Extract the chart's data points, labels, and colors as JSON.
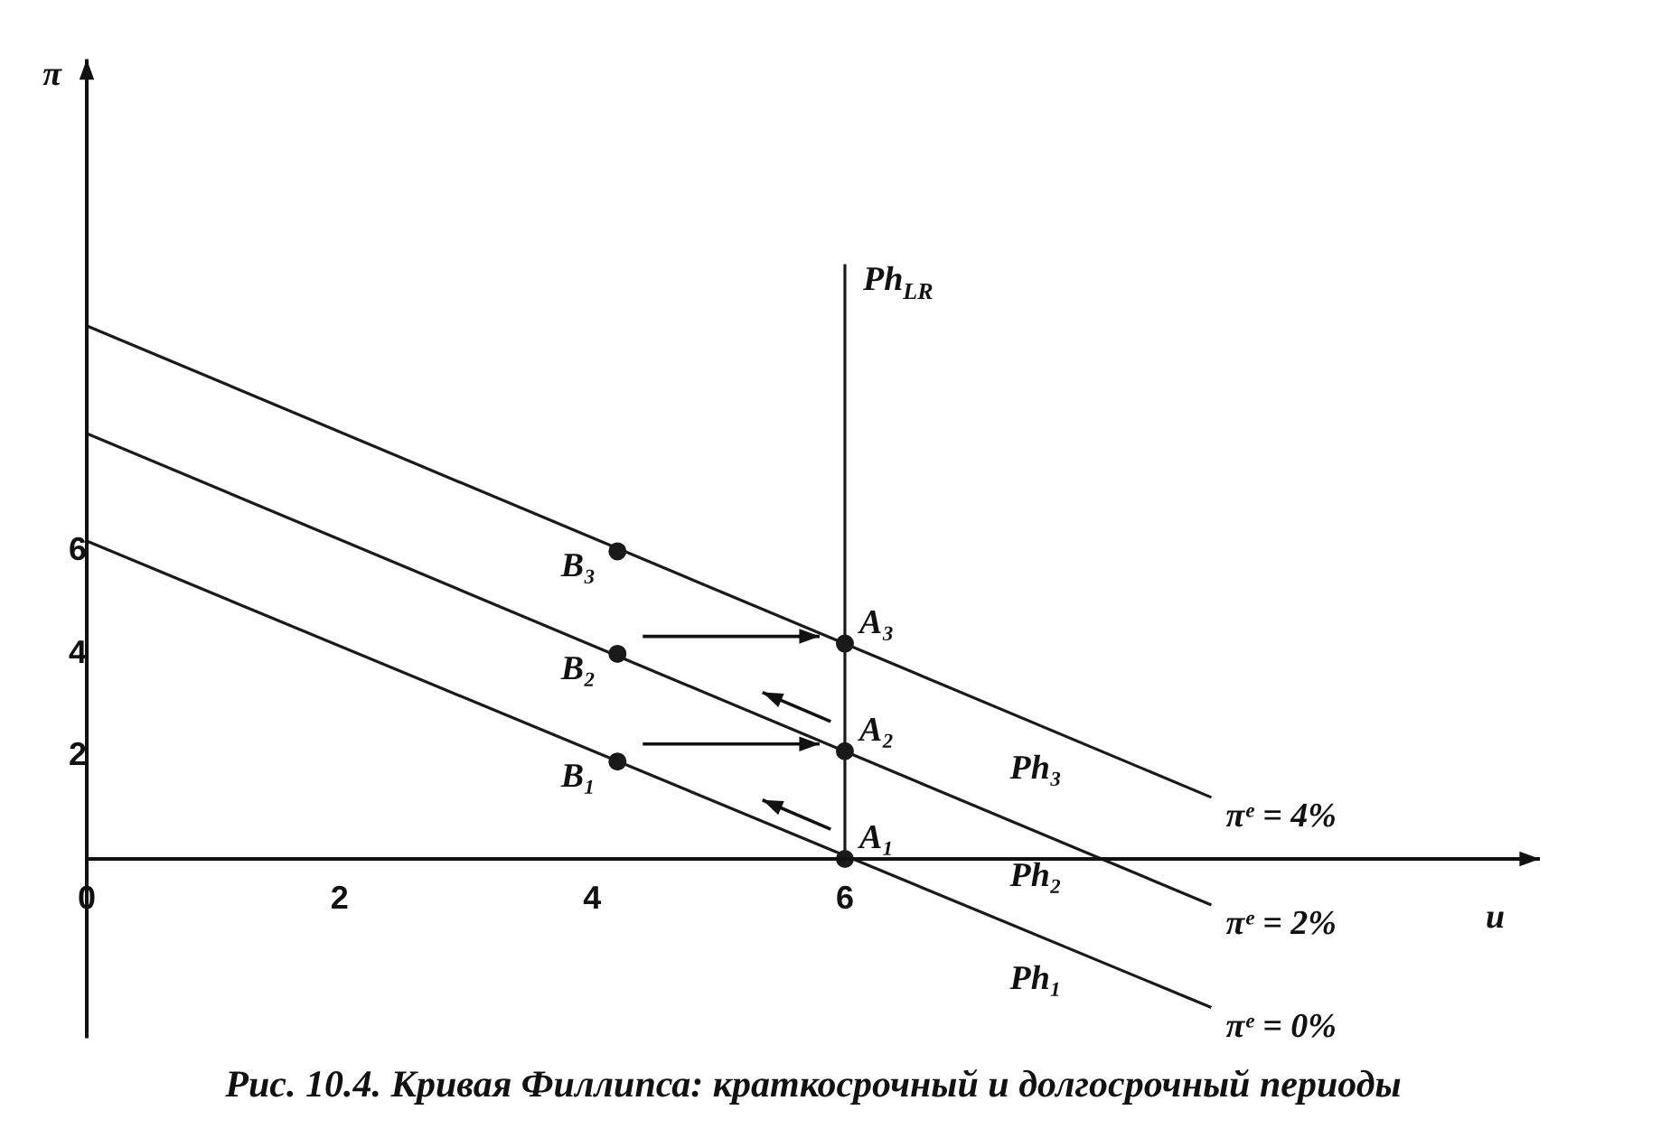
{
  "chart_data": {
    "type": "line",
    "title": "Рис. 10.4. Кривая Филлипса: краткосрочный и долгосрочный периоды",
    "xlabel": "u",
    "ylabel": "π",
    "xlim": [
      0,
      11.5
    ],
    "ylim": [
      -3.5,
      15.6
    ],
    "xticks": [
      0,
      2,
      4,
      6
    ],
    "yticks": [
      2,
      4,
      6
    ],
    "grid": false,
    "legend": false,
    "marker": "none",
    "line_style": "solid",
    "series": [
      {
        "name": "Ph₁",
        "color": "#1a1a1a",
        "x": [
          0,
          8.9
        ],
        "values": [
          6.2,
          -2.9
        ]
      },
      {
        "name": "Ph₂",
        "color": "#1a1a1a",
        "x": [
          0,
          8.9
        ],
        "values": [
          8.3,
          -0.9
        ]
      },
      {
        "name": "Ph₃",
        "color": "#1a1a1a",
        "x": [
          0,
          8.9
        ],
        "values": [
          10.4,
          1.2
        ]
      },
      {
        "name": "Ph$_{LR}$",
        "color": "#1a1a1a",
        "x": [
          6,
          6
        ],
        "values": [
          0,
          11.6
        ]
      },
      {
        "type": "scatter",
        "color": "#1a1a1a",
        "marker": "circle",
        "x": [
          4.2,
          4.2,
          4.2,
          6,
          6,
          6
        ],
        "values": [
          1.9,
          4.0,
          6.0,
          0,
          2.1,
          4.2
        ]
      }
    ],
    "annotations": [
      {
        "text": "B₁",
        "x": 4.2,
        "y": 1.9
      },
      {
        "text": "B₂",
        "x": 4.2,
        "y": 4.0
      },
      {
        "text": "B₃",
        "x": 4.2,
        "y": 6.0
      },
      {
        "text": "A₁",
        "x": 6,
        "y": 0
      },
      {
        "text": "A₂",
        "x": 6,
        "y": 2.1
      },
      {
        "text": "A₃",
        "x": 6,
        "y": 4.2
      },
      {
        "text": "πᵉ = 0%",
        "x": 8.9,
        "y": -2.9
      },
      {
        "text": "πᵉ = 2%",
        "x": 8.9,
        "y": -0.9
      },
      {
        "text": "πᵉ = 4%",
        "x": 8.9,
        "y": 1.2
      }
    ]
  }
}
